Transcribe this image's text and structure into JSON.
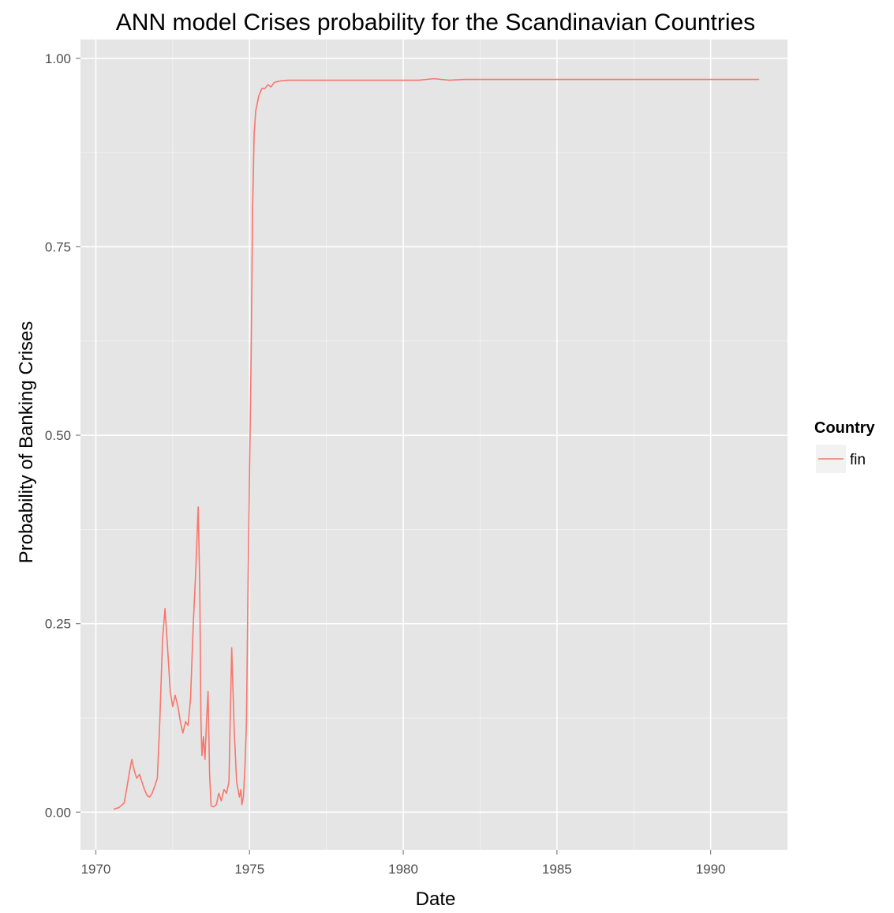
{
  "chart_data": {
    "type": "line",
    "title": "ANN model Crises probability  for the Scandinavian Countries",
    "xlabel": "Date",
    "ylabel": "Probability of Banking Crises",
    "xlim": [
      1969.5,
      1992.5
    ],
    "ylim": [
      -0.05,
      1.025
    ],
    "x_ticks": [
      1970,
      1975,
      1980,
      1985,
      1990
    ],
    "x_tick_labels": [
      "1970",
      "1975",
      "1980",
      "1985",
      "1990"
    ],
    "y_ticks": [
      0.0,
      0.25,
      0.5,
      0.75,
      1.0
    ],
    "y_tick_labels": [
      "0.00",
      "0.25",
      "0.50",
      "0.75",
      "1.00"
    ],
    "grid": true,
    "legend": {
      "title": "Country",
      "position": "right",
      "entries": [
        {
          "label": "fin",
          "color": "#f8766d"
        }
      ]
    },
    "colors": {
      "panel_background": "#e5e5e5",
      "grid_line": "#ffffff",
      "series_line": "#f8766d"
    },
    "series": [
      {
        "name": "fin",
        "color": "#f8766d",
        "points": [
          [
            1970.58,
            0.004
          ],
          [
            1970.75,
            0.006
          ],
          [
            1970.92,
            0.012
          ],
          [
            1971.0,
            0.03
          ],
          [
            1971.08,
            0.05
          ],
          [
            1971.17,
            0.07
          ],
          [
            1971.25,
            0.055
          ],
          [
            1971.33,
            0.045
          ],
          [
            1971.42,
            0.05
          ],
          [
            1971.5,
            0.04
          ],
          [
            1971.58,
            0.03
          ],
          [
            1971.67,
            0.022
          ],
          [
            1971.75,
            0.02
          ],
          [
            1971.83,
            0.025
          ],
          [
            1971.92,
            0.035
          ],
          [
            1972.0,
            0.045
          ],
          [
            1972.08,
            0.12
          ],
          [
            1972.17,
            0.23
          ],
          [
            1972.25,
            0.27
          ],
          [
            1972.33,
            0.22
          ],
          [
            1972.42,
            0.16
          ],
          [
            1972.5,
            0.14
          ],
          [
            1972.58,
            0.155
          ],
          [
            1972.67,
            0.14
          ],
          [
            1972.75,
            0.12
          ],
          [
            1972.83,
            0.105
          ],
          [
            1972.92,
            0.12
          ],
          [
            1973.0,
            0.115
          ],
          [
            1973.08,
            0.15
          ],
          [
            1973.17,
            0.25
          ],
          [
            1973.25,
            0.32
          ],
          [
            1973.33,
            0.405
          ],
          [
            1973.38,
            0.3
          ],
          [
            1973.42,
            0.12
          ],
          [
            1973.45,
            0.075
          ],
          [
            1973.5,
            0.1
          ],
          [
            1973.55,
            0.07
          ],
          [
            1973.6,
            0.12
          ],
          [
            1973.65,
            0.16
          ],
          [
            1973.7,
            0.05
          ],
          [
            1973.75,
            0.008
          ],
          [
            1973.83,
            0.007
          ],
          [
            1973.92,
            0.01
          ],
          [
            1974.0,
            0.025
          ],
          [
            1974.08,
            0.015
          ],
          [
            1974.17,
            0.03
          ],
          [
            1974.25,
            0.025
          ],
          [
            1974.33,
            0.04
          ],
          [
            1974.42,
            0.218
          ],
          [
            1974.5,
            0.11
          ],
          [
            1974.58,
            0.04
          ],
          [
            1974.67,
            0.02
          ],
          [
            1974.72,
            0.03
          ],
          [
            1974.75,
            0.01
          ],
          [
            1974.8,
            0.02
          ],
          [
            1974.85,
            0.06
          ],
          [
            1974.9,
            0.12
          ],
          [
            1974.95,
            0.3
          ],
          [
            1975.0,
            0.45
          ],
          [
            1975.05,
            0.6
          ],
          [
            1975.1,
            0.8
          ],
          [
            1975.15,
            0.9
          ],
          [
            1975.2,
            0.93
          ],
          [
            1975.3,
            0.95
          ],
          [
            1975.4,
            0.96
          ],
          [
            1975.5,
            0.96
          ],
          [
            1975.6,
            0.965
          ],
          [
            1975.7,
            0.962
          ],
          [
            1975.8,
            0.968
          ],
          [
            1975.9,
            0.969
          ],
          [
            1976.0,
            0.97
          ],
          [
            1976.25,
            0.971
          ],
          [
            1977.0,
            0.971
          ],
          [
            1978.0,
            0.971
          ],
          [
            1979.0,
            0.971
          ],
          [
            1980.0,
            0.971
          ],
          [
            1980.5,
            0.971
          ],
          [
            1981.0,
            0.973
          ],
          [
            1981.5,
            0.971
          ],
          [
            1982.0,
            0.972
          ],
          [
            1984.0,
            0.972
          ],
          [
            1986.0,
            0.972
          ],
          [
            1988.0,
            0.972
          ],
          [
            1990.0,
            0.972
          ],
          [
            1991.58,
            0.972
          ]
        ]
      }
    ]
  }
}
